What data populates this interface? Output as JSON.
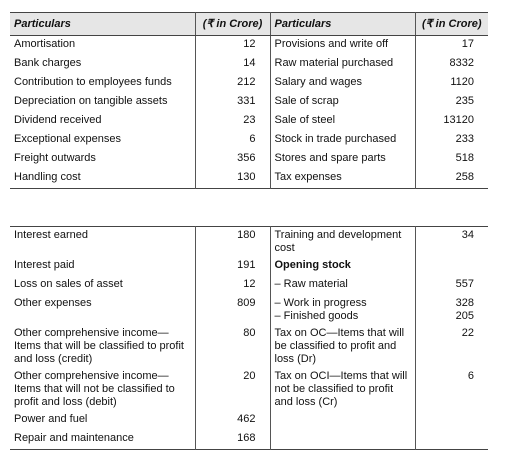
{
  "header": [
    "Particulars",
    "(₹ in Crore)",
    "Particulars",
    "(₹ in Crore)"
  ],
  "blocks": [
    [
      {
        "left": {
          "label": "Amortisation",
          "value": 12
        },
        "right": {
          "label": "Provisions and write off",
          "value": 17
        }
      },
      {
        "left": {
          "label": "Bank charges",
          "value": 14
        },
        "right": {
          "label": "Raw material purchased",
          "value": 8332
        }
      },
      {
        "left": {
          "label": "Contribution to employees funds",
          "value": 212
        },
        "right": {
          "label": "Salary and wages",
          "value": 1120
        }
      },
      {
        "left": {
          "label": "Depreciation on tangible assets",
          "value": 331
        },
        "right": {
          "label": "Sale of scrap",
          "value": 235
        }
      },
      {
        "left": {
          "label": "Dividend received",
          "value": 23
        },
        "right": {
          "label": "Sale of steel",
          "value": 13120
        }
      },
      {
        "left": {
          "label": "Exceptional expenses",
          "value": 6
        },
        "right": {
          "label": "Stock in trade purchased",
          "value": 233
        }
      },
      {
        "left": {
          "label": "Freight outwards",
          "value": 356
        },
        "right": {
          "label": "Stores and spare parts",
          "value": 518
        }
      },
      {
        "left": {
          "label": "Handling cost",
          "value": 130
        },
        "right": {
          "label": "Tax expenses",
          "value": 258
        }
      }
    ],
    [
      {
        "left": {
          "label": "Interest earned",
          "value": 180
        },
        "right": {
          "label": "Training and development cost",
          "value": 34
        }
      },
      {
        "left": {
          "label": "Interest paid",
          "value": 191
        },
        "right": {
          "label": "Opening stock",
          "bold": true
        }
      },
      {
        "left": {
          "label": "Loss on sales of asset",
          "value": 12
        },
        "right": {
          "label": "– Raw material",
          "value": 557
        }
      },
      {
        "left": {
          "label": "Other expenses",
          "value": 809
        },
        "right": {
          "items": [
            {
              "label": "– Work in progress",
              "value": 328
            },
            {
              "label": "– Finished goods",
              "value": 205
            }
          ]
        }
      },
      {
        "left": {
          "label": "Other comprehensive income—Items that will be classified to profit and loss (credit)",
          "value": 80
        },
        "right": {
          "label": "Tax on OC—Items that will be classified to profit and loss (Dr)",
          "value": 22
        }
      },
      {
        "left": {
          "label": "Other comprehensive income—Items that will not be classified to profit and loss (debit)",
          "value": 20
        },
        "right": {
          "label": "Tax on OCI—Items that will not be classified to profit and loss (Cr)",
          "value": 6
        }
      },
      {
        "left": {
          "label": "Power and fuel",
          "value": 462
        }
      },
      {
        "left": {
          "label": "Repair and maintenance",
          "value": 168
        }
      }
    ]
  ]
}
